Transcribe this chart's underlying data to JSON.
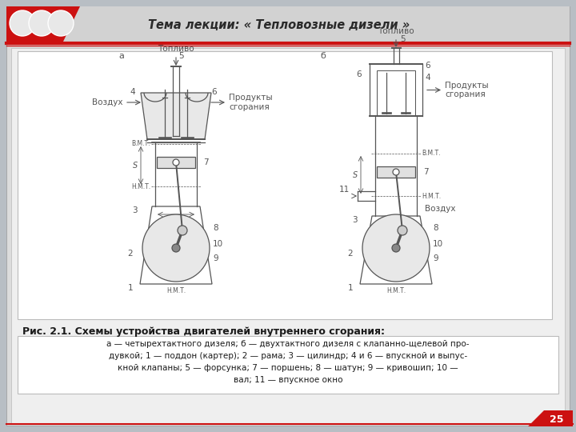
{
  "bg_color": "#b8bec4",
  "slide_bg": "#e0e0e0",
  "header_text": "Тема лекции: « Тепловозные дизели »",
  "caption": "Рис. 2.1. Схемы устройства двигателей внутреннего сгорания:",
  "description_lines": [
    "а — четырехтактного дизеля; б — двухтактного дизеля с клапанно-щелевой про-",
    "дувкой; 1 — поддон (картер); 2 — рама; 3 — цилиндр; 4 и 6 — впускной и выпус-",
    "кной клапаны; 5 — форсунка; 7 — поршень; 8 — шатун; 9 — кривошип; 10 —",
    "вал; 11 — впускное окно"
  ],
  "page_number": "25",
  "red": "#cc1111",
  "dark": "#333333",
  "gray": "#555555",
  "lightgray": "#aaaaaa"
}
